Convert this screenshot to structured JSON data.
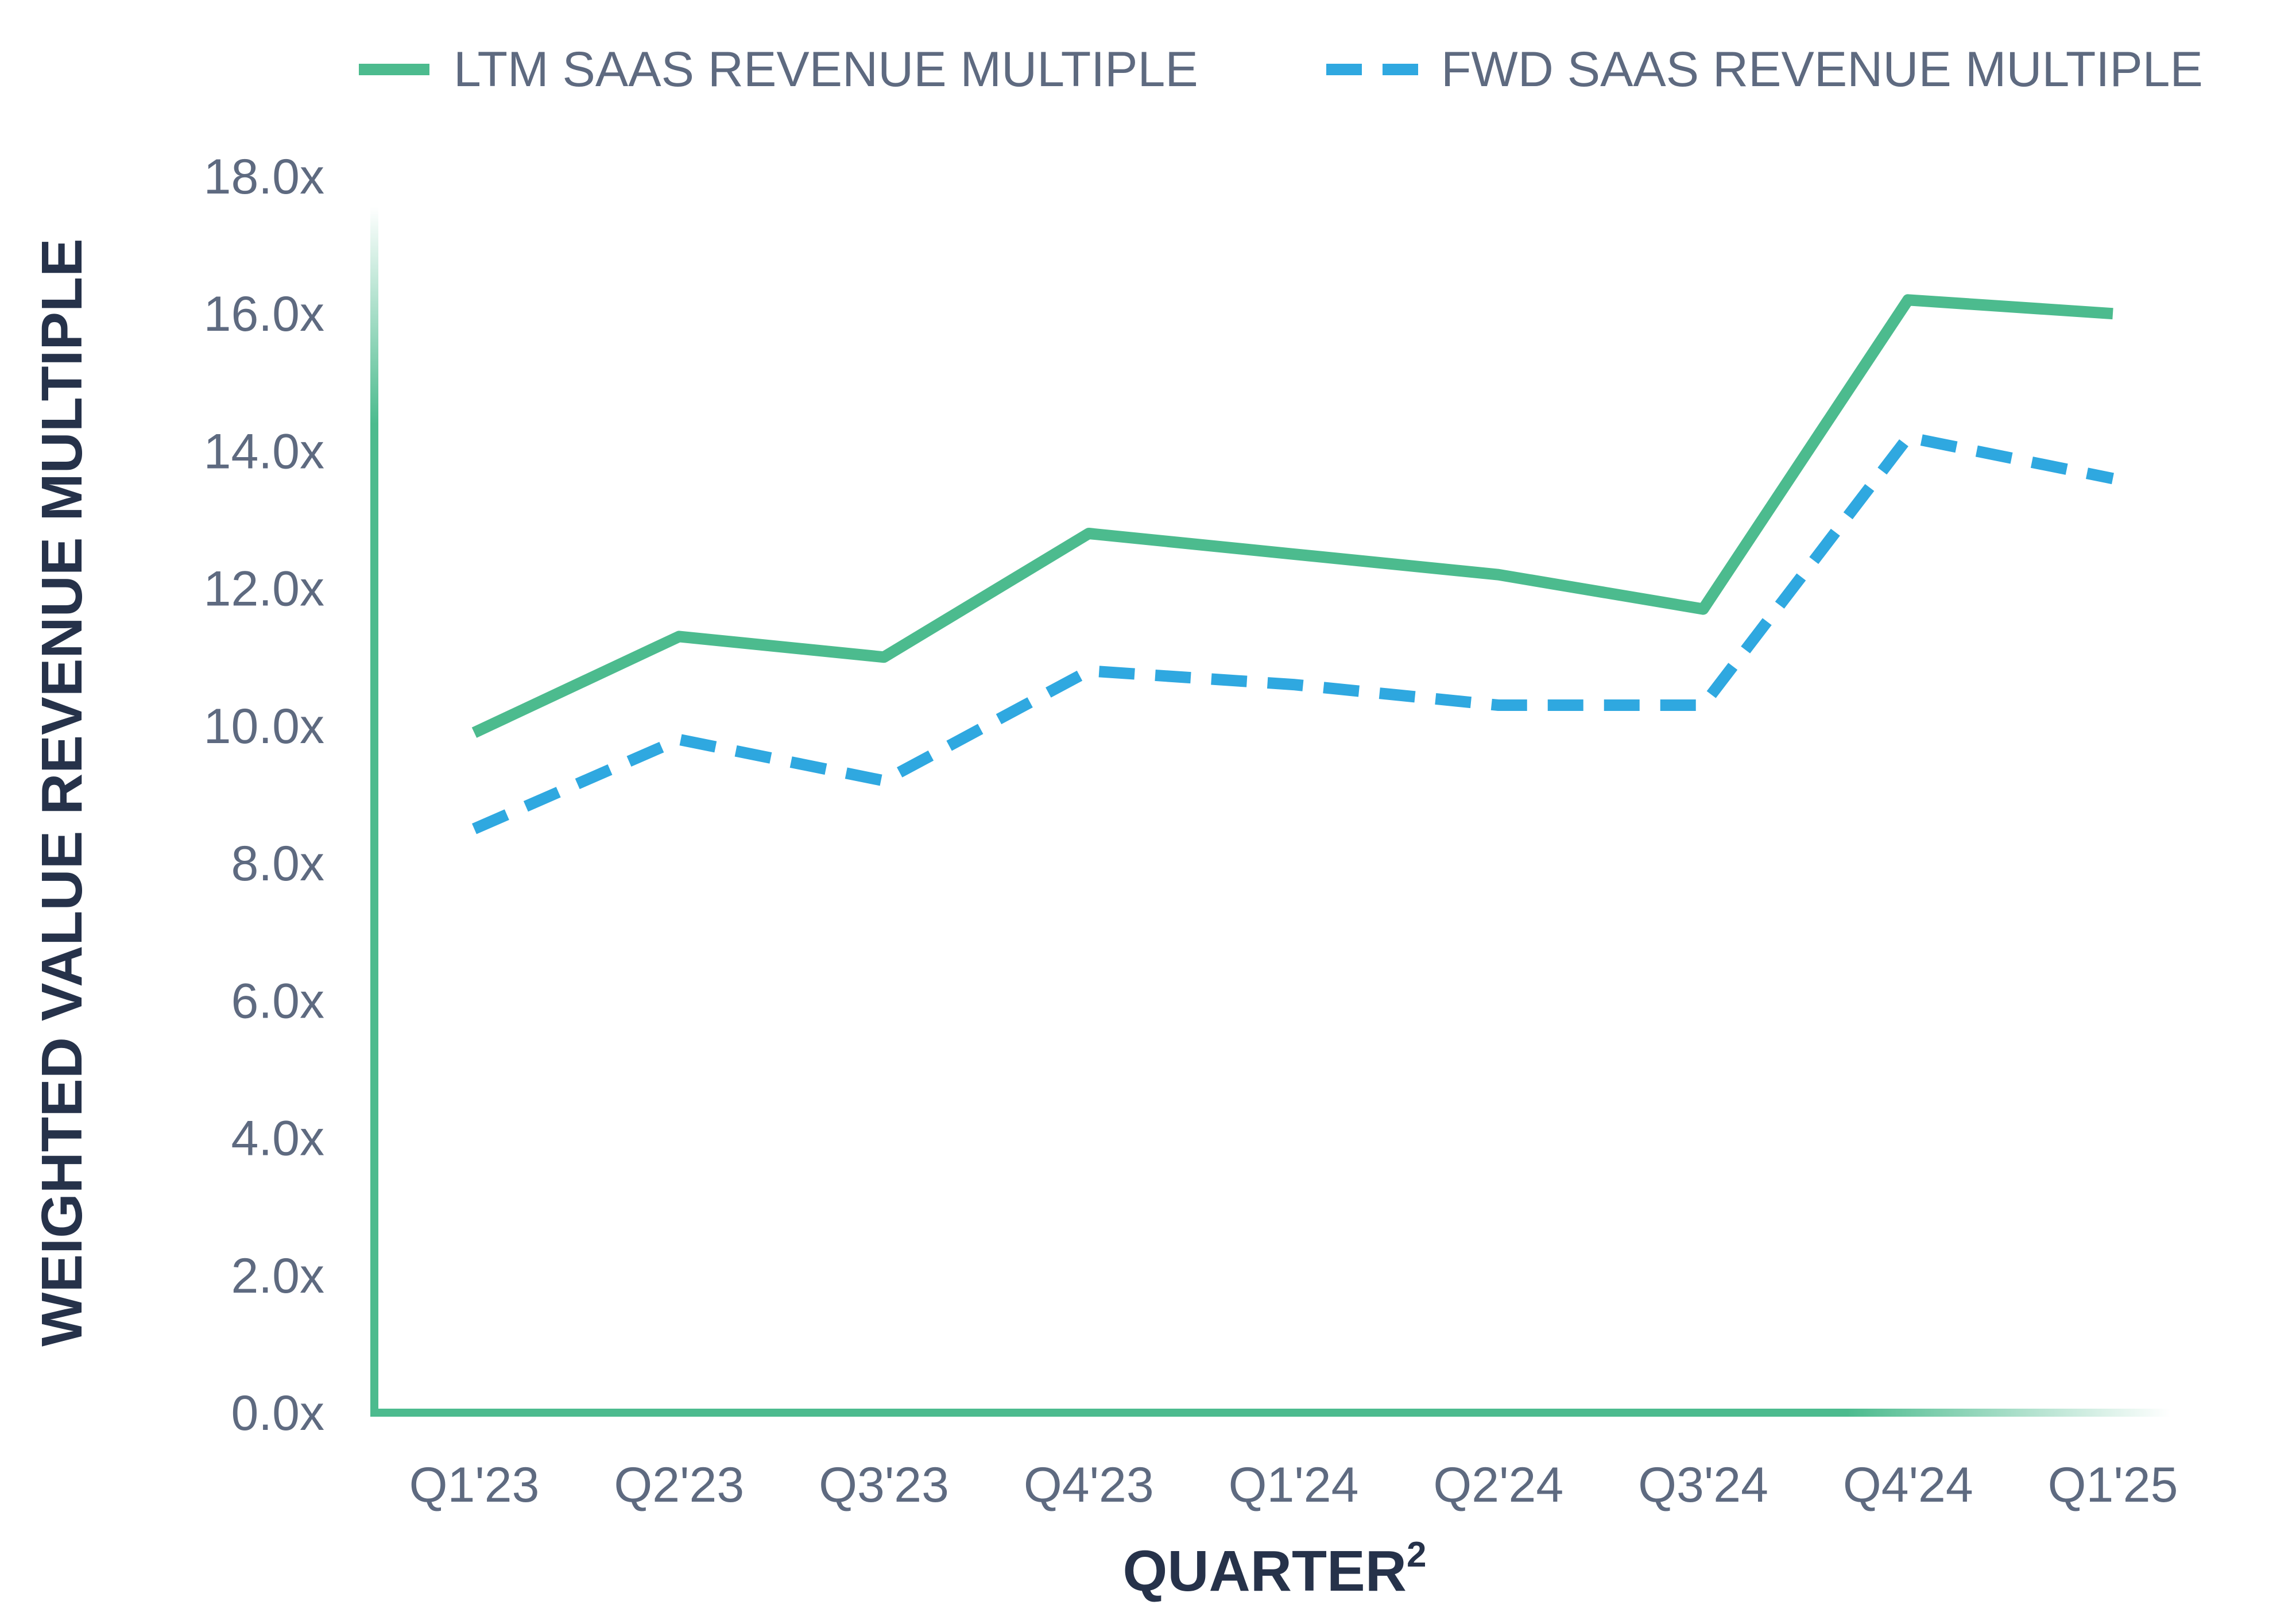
{
  "chart_data": {
    "type": "line",
    "categories": [
      "Q1'23",
      "Q2'23",
      "Q3'23",
      "Q4'23",
      "Q1'24",
      "Q2'24",
      "Q3'24",
      "Q4'24",
      "Q1'25"
    ],
    "series": [
      {
        "name": "LTM SAAS REVENUE MULTIPLE",
        "style": "solid",
        "color": "#4cbb8e",
        "values": [
          9.9,
          11.3,
          11.0,
          12.8,
          12.5,
          12.2,
          11.7,
          16.2,
          16.0
        ]
      },
      {
        "name": "FWD SAAS REVENUE MULTIPLE",
        "style": "dashed",
        "color": "#2fa8e0",
        "values": [
          8.5,
          9.8,
          9.2,
          10.8,
          10.6,
          10.3,
          10.3,
          14.2,
          13.6
        ]
      }
    ],
    "yticks": [
      0,
      2,
      4,
      6,
      8,
      10,
      12,
      14,
      16,
      18
    ],
    "ytick_labels": [
      "0.0x",
      "2.0x",
      "4.0x",
      "6.0x",
      "8.0x",
      "10.0x",
      "12.0x",
      "14.0x",
      "16.0x",
      "18.0x"
    ],
    "ylim": [
      0,
      18
    ],
    "xlabel": "QUARTER",
    "xlabel_superscript": "2",
    "ylabel": "WEIGHTED VALUE REVENUE MULTIPLE",
    "grid": false,
    "legend_position": "top",
    "axis_color": "#4cbb8e"
  }
}
